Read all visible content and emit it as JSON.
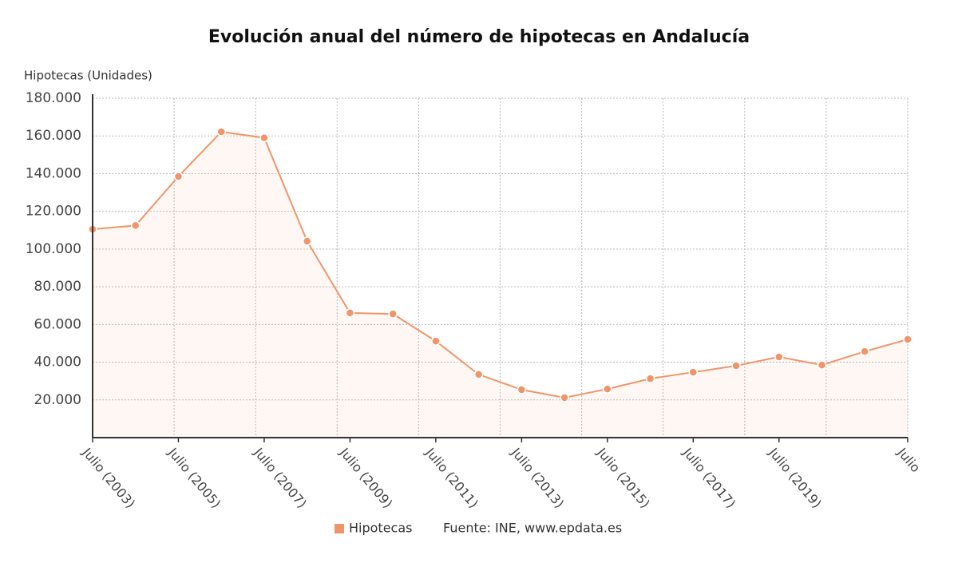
{
  "chart_data": {
    "type": "line",
    "title": "Evolución anual del número de hipotecas en Andalucía",
    "y_label": "Hipotecas (Unidades)",
    "categories": [
      "Julio (2003)",
      null,
      "Julio (2005)",
      null,
      "Julio (2007)",
      null,
      "Julio (2009)",
      null,
      "Julio (2011)",
      null,
      "Julio (2013)",
      null,
      "Julio (2015)",
      null,
      "Julio (2017)",
      null,
      "Julio (2019)",
      null,
      null,
      "Julio"
    ],
    "series": [
      {
        "name": "Hipotecas",
        "color": "#f0956a",
        "values": [
          110500,
          112500,
          138500,
          162200,
          159000,
          104200,
          66100,
          65600,
          51200,
          33500,
          25400,
          21200,
          25800,
          31300,
          34700,
          38100,
          42800,
          38500,
          45700,
          52100
        ]
      }
    ],
    "ylim": [
      0,
      180000
    ],
    "yticks": [
      {
        "value": 20000,
        "label": "20.000"
      },
      {
        "value": 40000,
        "label": "40.000"
      },
      {
        "value": 60000,
        "label": "60.000"
      },
      {
        "value": 80000,
        "label": "80.000"
      },
      {
        "value": 100000,
        "label": "100.000"
      },
      {
        "value": 120000,
        "label": "120.000"
      },
      {
        "value": 140000,
        "label": "140.000"
      },
      {
        "value": 160000,
        "label": "160.000"
      },
      {
        "value": 180000,
        "label": "180.000"
      }
    ],
    "grid": true,
    "source": "Fuente: INE, www.epdata.es"
  }
}
